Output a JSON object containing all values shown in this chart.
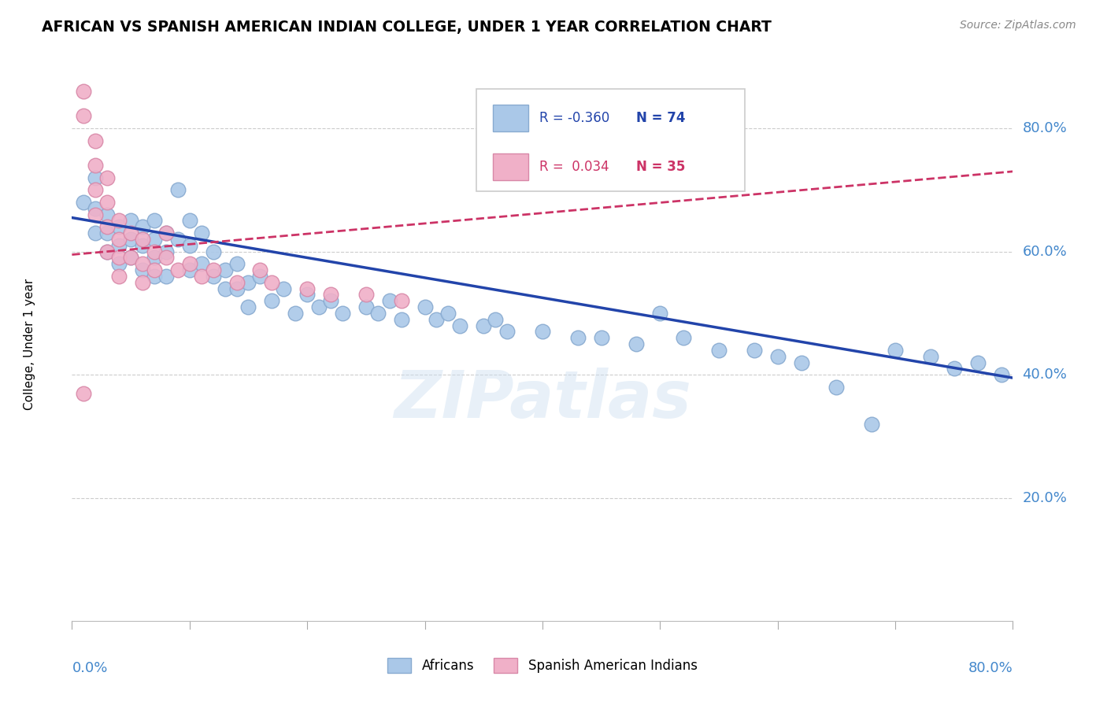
{
  "title": "AFRICAN VS SPANISH AMERICAN INDIAN COLLEGE, UNDER 1 YEAR CORRELATION CHART",
  "source": "Source: ZipAtlas.com",
  "ylabel": "College, Under 1 year",
  "legend_entries": [
    "Africans",
    "Spanish American Indians"
  ],
  "r_african": -0.36,
  "n_african": 74,
  "r_spanish": 0.034,
  "n_spanish": 35,
  "xlim": [
    0.0,
    0.8
  ],
  "ylim": [
    0.0,
    0.9
  ],
  "yticks": [
    0.2,
    0.4,
    0.6,
    0.8
  ],
  "ytick_labels": [
    "20.0%",
    "40.0%",
    "60.0%",
    "80.0%"
  ],
  "african_color": "#aac8e8",
  "african_edge": "#88aad0",
  "african_line": "#2244aa",
  "spanish_color": "#f0b0c8",
  "spanish_edge": "#d888a8",
  "spanish_line": "#cc3366",
  "bg_color": "#ffffff",
  "watermark": "ZIPatlas",
  "african_x": [
    0.01,
    0.02,
    0.02,
    0.02,
    0.03,
    0.03,
    0.03,
    0.04,
    0.04,
    0.04,
    0.05,
    0.05,
    0.05,
    0.06,
    0.06,
    0.06,
    0.07,
    0.07,
    0.07,
    0.07,
    0.08,
    0.08,
    0.08,
    0.09,
    0.09,
    0.1,
    0.1,
    0.1,
    0.11,
    0.11,
    0.12,
    0.12,
    0.13,
    0.13,
    0.14,
    0.14,
    0.15,
    0.15,
    0.16,
    0.17,
    0.18,
    0.19,
    0.2,
    0.21,
    0.22,
    0.23,
    0.25,
    0.26,
    0.27,
    0.28,
    0.3,
    0.31,
    0.32,
    0.33,
    0.35,
    0.36,
    0.37,
    0.4,
    0.43,
    0.45,
    0.48,
    0.5,
    0.52,
    0.55,
    0.58,
    0.6,
    0.62,
    0.65,
    0.68,
    0.7,
    0.73,
    0.75,
    0.77,
    0.79
  ],
  "african_y": [
    0.68,
    0.72,
    0.67,
    0.63,
    0.66,
    0.63,
    0.6,
    0.64,
    0.61,
    0.58,
    0.65,
    0.62,
    0.59,
    0.64,
    0.61,
    0.57,
    0.65,
    0.62,
    0.59,
    0.56,
    0.63,
    0.6,
    0.56,
    0.7,
    0.62,
    0.65,
    0.61,
    0.57,
    0.63,
    0.58,
    0.6,
    0.56,
    0.57,
    0.54,
    0.58,
    0.54,
    0.55,
    0.51,
    0.56,
    0.52,
    0.54,
    0.5,
    0.53,
    0.51,
    0.52,
    0.5,
    0.51,
    0.5,
    0.52,
    0.49,
    0.51,
    0.49,
    0.5,
    0.48,
    0.48,
    0.49,
    0.47,
    0.47,
    0.46,
    0.46,
    0.45,
    0.5,
    0.46,
    0.44,
    0.44,
    0.43,
    0.42,
    0.38,
    0.32,
    0.44,
    0.43,
    0.41,
    0.42,
    0.4
  ],
  "spanish_x": [
    0.01,
    0.01,
    0.02,
    0.02,
    0.02,
    0.02,
    0.03,
    0.03,
    0.03,
    0.03,
    0.04,
    0.04,
    0.04,
    0.04,
    0.05,
    0.05,
    0.06,
    0.06,
    0.06,
    0.07,
    0.07,
    0.08,
    0.08,
    0.09,
    0.1,
    0.11,
    0.12,
    0.14,
    0.16,
    0.17,
    0.2,
    0.22,
    0.25,
    0.28,
    0.01
  ],
  "spanish_y": [
    0.86,
    0.82,
    0.78,
    0.74,
    0.7,
    0.66,
    0.72,
    0.68,
    0.64,
    0.6,
    0.65,
    0.62,
    0.59,
    0.56,
    0.63,
    0.59,
    0.62,
    0.58,
    0.55,
    0.6,
    0.57,
    0.63,
    0.59,
    0.57,
    0.58,
    0.56,
    0.57,
    0.55,
    0.57,
    0.55,
    0.54,
    0.53,
    0.53,
    0.52,
    0.37
  ],
  "african_trend_x": [
    0.0,
    0.8
  ],
  "african_trend_y": [
    0.655,
    0.395
  ],
  "spanish_trend_x": [
    0.0,
    0.8
  ],
  "spanish_trend_y": [
    0.595,
    0.73
  ]
}
